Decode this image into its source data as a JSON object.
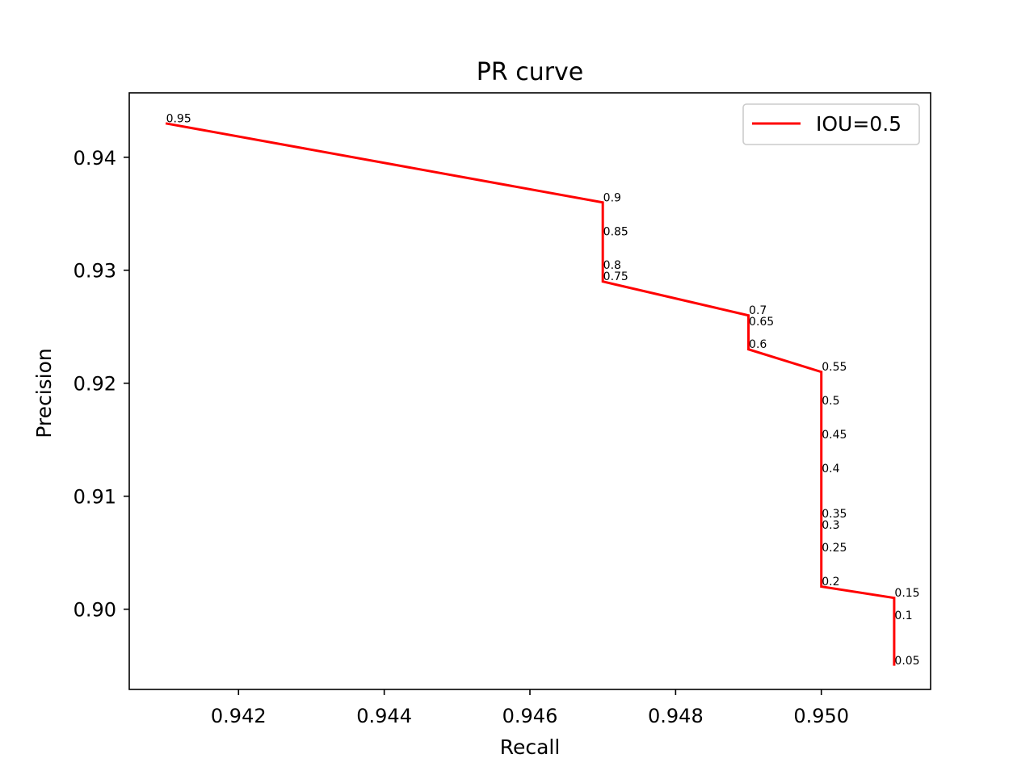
{
  "chart_data": {
    "type": "line",
    "title": "PR curve",
    "xlabel": "Recall",
    "ylabel": "Precision",
    "xlim": [
      0.9405,
      0.9515
    ],
    "ylim": [
      0.8929,
      0.9457
    ],
    "x_ticks": [
      0.942,
      0.944,
      0.946,
      0.948,
      0.95
    ],
    "x_tick_labels": [
      "0.942",
      "0.944",
      "0.946",
      "0.948",
      "0.950"
    ],
    "y_ticks": [
      0.9,
      0.91,
      0.92,
      0.93,
      0.94
    ],
    "y_tick_labels": [
      "0.90",
      "0.91",
      "0.92",
      "0.93",
      "0.94"
    ],
    "grid": false,
    "legend_position": "top-right",
    "series": [
      {
        "name": "IOU=0.5",
        "color": "#ff0000",
        "x": [
          0.941,
          0.947,
          0.947,
          0.947,
          0.947,
          0.949,
          0.949,
          0.949,
          0.95,
          0.95,
          0.95,
          0.95,
          0.95,
          0.95,
          0.95,
          0.95,
          0.951,
          0.951,
          0.951
        ],
        "y": [
          0.943,
          0.936,
          0.933,
          0.93,
          0.929,
          0.926,
          0.925,
          0.923,
          0.921,
          0.918,
          0.915,
          0.912,
          0.908,
          0.907,
          0.905,
          0.902,
          0.901,
          0.899,
          0.895
        ],
        "point_labels": [
          "0.95",
          "0.9",
          "0.85",
          "0.8",
          "0.75",
          "0.7",
          "0.65",
          "0.6",
          "0.55",
          "0.5",
          "0.45",
          "0.4",
          "0.35",
          "0.3",
          "0.25",
          "0.2",
          "0.15",
          "0.1",
          "0.05"
        ]
      }
    ]
  }
}
